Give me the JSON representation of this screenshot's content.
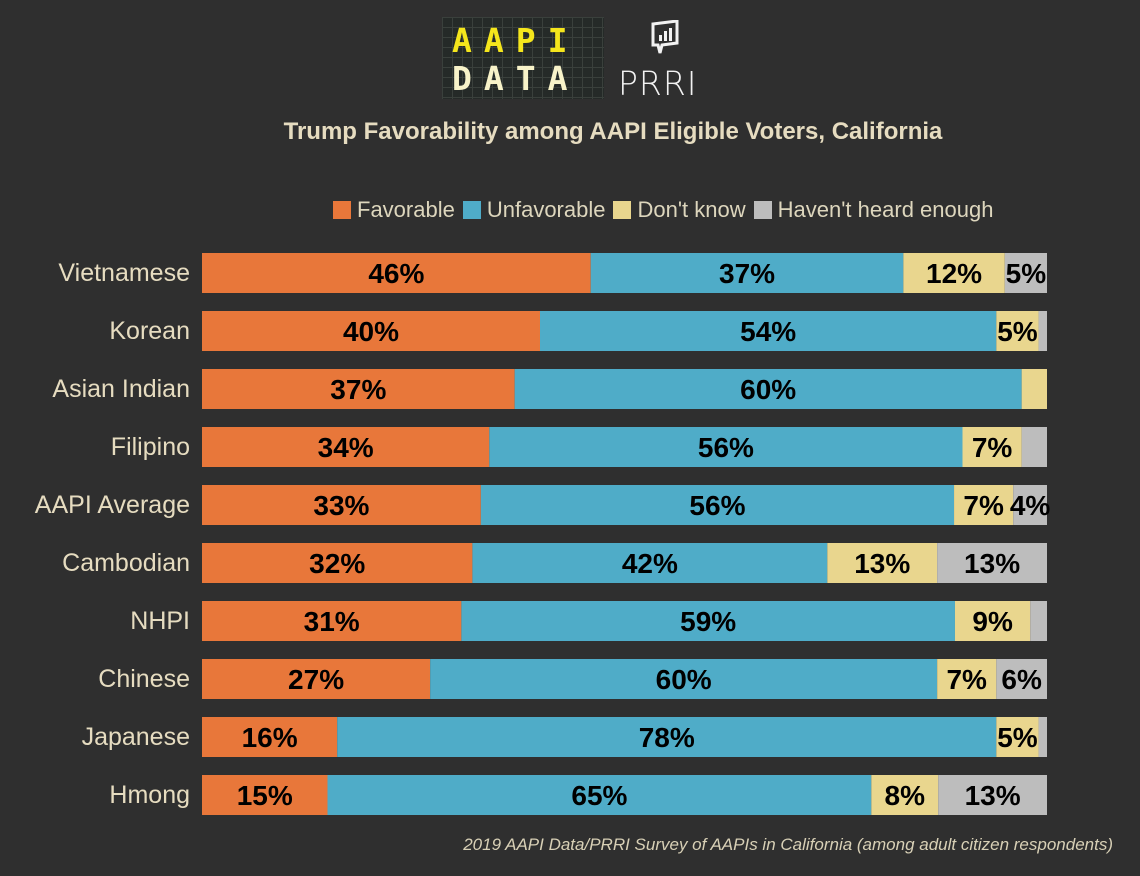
{
  "logos": {
    "aapi_line1": "AAPI",
    "aapi_line2": "DATA",
    "prri": "PRRI"
  },
  "colors": {
    "background": "#2f2f2f",
    "favorable": "#e8773a",
    "unfavorable": "#4facc8",
    "dont_know": "#e9d68e",
    "havent_heard": "#bdbdbd"
  },
  "footer": "2019 AAPI Data/PRRI Survey of AAPIs in California (among adult citizen respondents)",
  "chart_data": {
    "type": "bar",
    "orientation": "horizontal",
    "stacked": true,
    "title": "Trump Favorability among AAPI Eligible Voters, California",
    "legend_position": "top",
    "categories": [
      "Vietnamese",
      "Korean",
      "Asian Indian",
      "Filipino",
      "AAPI Average",
      "Cambodian",
      "NHPI",
      "Chinese",
      "Japanese",
      "Hmong"
    ],
    "series": [
      {
        "name": "Favorable",
        "color": "#e8773a",
        "values": [
          46,
          40,
          37,
          34,
          33,
          32,
          31,
          27,
          16,
          15
        ]
      },
      {
        "name": "Unfavorable",
        "color": "#4facc8",
        "values": [
          37,
          54,
          60,
          56,
          56,
          42,
          59,
          60,
          78,
          65
        ]
      },
      {
        "name": "Don't know",
        "color": "#e9d68e",
        "values": [
          12,
          5,
          3,
          7,
          7,
          13,
          9,
          7,
          5,
          8
        ]
      },
      {
        "name": "Haven't heard enough",
        "color": "#bdbdbd",
        "values": [
          5,
          1,
          0,
          3,
          4,
          13,
          2,
          6,
          1,
          13
        ]
      }
    ],
    "label_min": 4,
    "grid": false
  }
}
